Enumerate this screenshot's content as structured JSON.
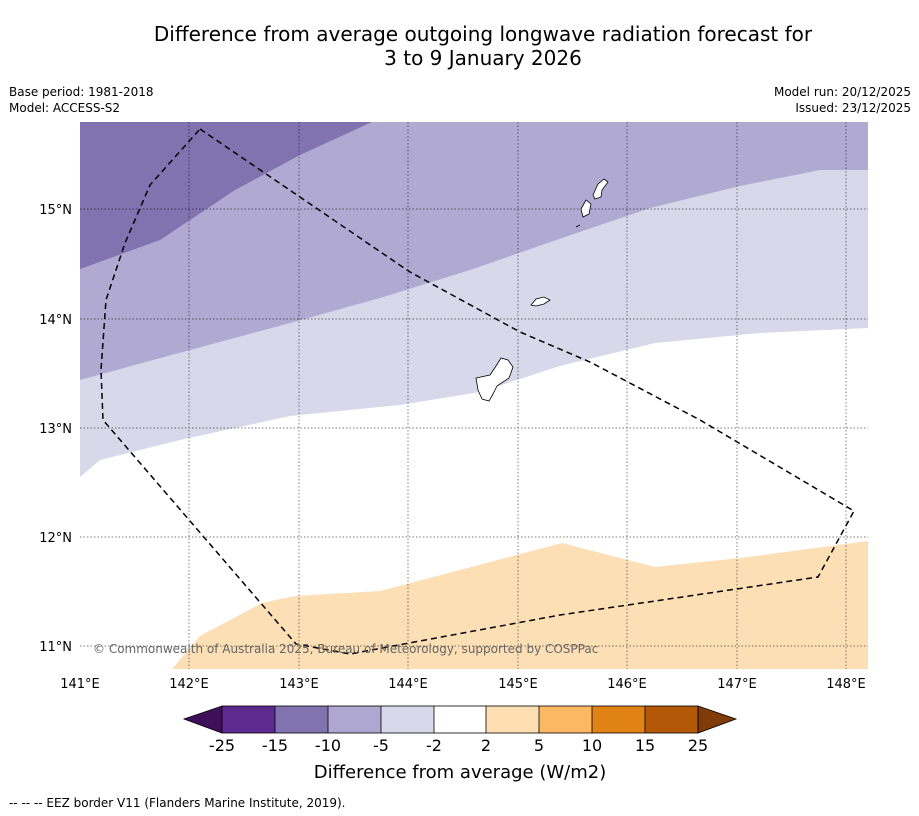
{
  "title": {
    "line1": "Difference from average outgoing longwave radiation forecast for",
    "line2": "3 to 9 January 2026"
  },
  "meta": {
    "base_period": "Base period: 1981-2018",
    "model": "Model: ACCESS-S2",
    "model_run": "Model run: 20/12/2025",
    "issued": "Issued: 23/12/2025"
  },
  "map": {
    "lon_ticks": [
      "141°E",
      "142°E",
      "143°E",
      "144°E",
      "145°E",
      "146°E",
      "147°E",
      "148°E"
    ],
    "lat_ticks": [
      "15°N",
      "14°N",
      "13°N",
      "12°N",
      "11°N"
    ],
    "copyright": "© Commonwealth of Australia 2025, Bureau of Meteorology, supported by COSPPac"
  },
  "colorbar": {
    "labels": [
      "-25",
      "-15",
      "-10",
      "-5",
      "-2",
      "2",
      "5",
      "10",
      "15",
      "25"
    ],
    "colors": [
      "#3f0f5c",
      "#5e2a8f",
      "#8073b0",
      "#aea7d0",
      "#d9d8ea",
      "#ffffff",
      "#fddfb3",
      "#fdb863",
      "#e08214",
      "#b35806",
      "#7f3b08"
    ],
    "title": "Difference from average (W/m2)"
  },
  "footnote": "--  --  -- EEZ border V11 (Flanders Marine Institute, 2019)."
}
